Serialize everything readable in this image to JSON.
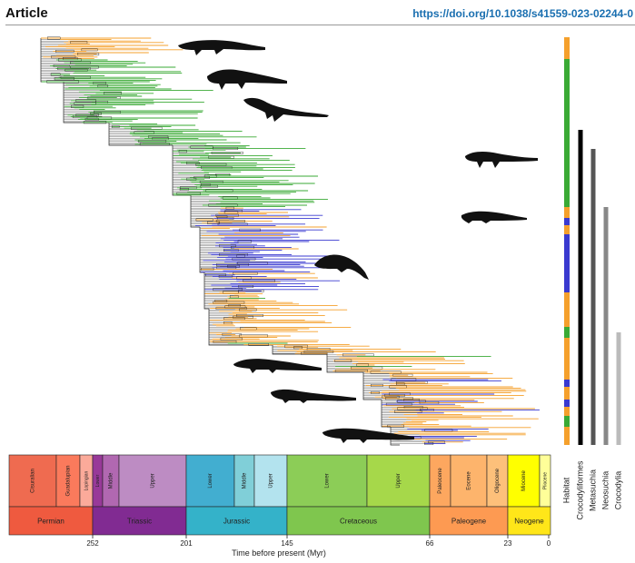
{
  "header": {
    "article_label": "Article",
    "doi": "https://doi.org/10.1038/s41559-023-02244-0"
  },
  "timescale": {
    "axis_label": "Time before present (Myr)",
    "ticks": [
      "252",
      "201",
      "145",
      "66",
      "23",
      "0"
    ],
    "periods": [
      {
        "name": "Permian",
        "color": "#ef5a3f"
      },
      {
        "name": "Triassic",
        "color": "#812b92"
      },
      {
        "name": "Jurassic",
        "color": "#34b2c9"
      },
      {
        "name": "Cretaceous",
        "color": "#7fc64e"
      },
      {
        "name": "Paleogene",
        "color": "#fd9a52"
      },
      {
        "name": "Neogene",
        "color": "#ffe619"
      }
    ],
    "epochs": [
      {
        "name": "Cisuralian",
        "color": "#ef6b50"
      },
      {
        "name": "Guadalupian",
        "color": "#fb7a5c"
      },
      {
        "name": "Lopingian",
        "color": "#fbaa9a"
      },
      {
        "name": "Lower",
        "color": "#983999"
      },
      {
        "name": "Middle",
        "color": "#b168b1"
      },
      {
        "name": "Upper",
        "color": "#bd8cc3"
      },
      {
        "name": "Lower",
        "color": "#42aed0"
      },
      {
        "name": "Middle",
        "color": "#80cfd8"
      },
      {
        "name": "Upper",
        "color": "#b3e3ee"
      },
      {
        "name": "Lower",
        "color": "#8ccd57"
      },
      {
        "name": "Upper",
        "color": "#a6d84a"
      },
      {
        "name": "Paleocene",
        "color": "#fda75f"
      },
      {
        "name": "Eocene",
        "color": "#fdb46c"
      },
      {
        "name": "Oligocene",
        "color": "#fdc07a"
      },
      {
        "name": "Miocene",
        "color": "#ffff00"
      },
      {
        "name": "Pliocene",
        "color": "#ffff99"
      }
    ]
  },
  "side_bars": {
    "labels": [
      "Habitat",
      "Crocodyliformes",
      "Metasuchia",
      "Neosuchia",
      "Crocodylia"
    ],
    "colors": [
      "#f5a02c",
      "#000000",
      "#555555",
      "#888888",
      "#bbbbbb"
    ]
  },
  "habitat_colors": {
    "terrestrial": "#3aaa35",
    "freshwater": "#f5a02c",
    "marine": "#3a3ad0"
  }
}
